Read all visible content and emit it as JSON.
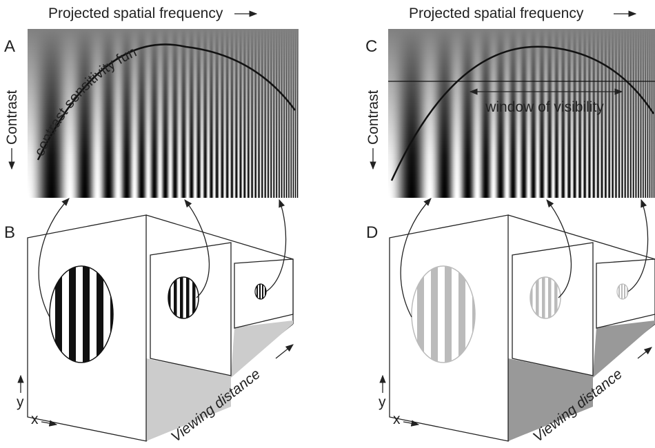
{
  "panels": [
    {
      "label": "A",
      "x_axis_label": "Projected spatial frequency",
      "y_axis_label": "Contrast",
      "annotation": "contrast sensitivity function"
    },
    {
      "label": "B",
      "depth_label": "Viewing distance",
      "x_label": "x",
      "y_label": "y"
    },
    {
      "label": "C",
      "x_axis_label": "Projected spatial frequency",
      "y_axis_label": "Contrast",
      "annotation": "window of visibility"
    },
    {
      "label": "D",
      "depth_label": "Viewing distance",
      "x_label": "x",
      "y_label": "y"
    }
  ]
}
